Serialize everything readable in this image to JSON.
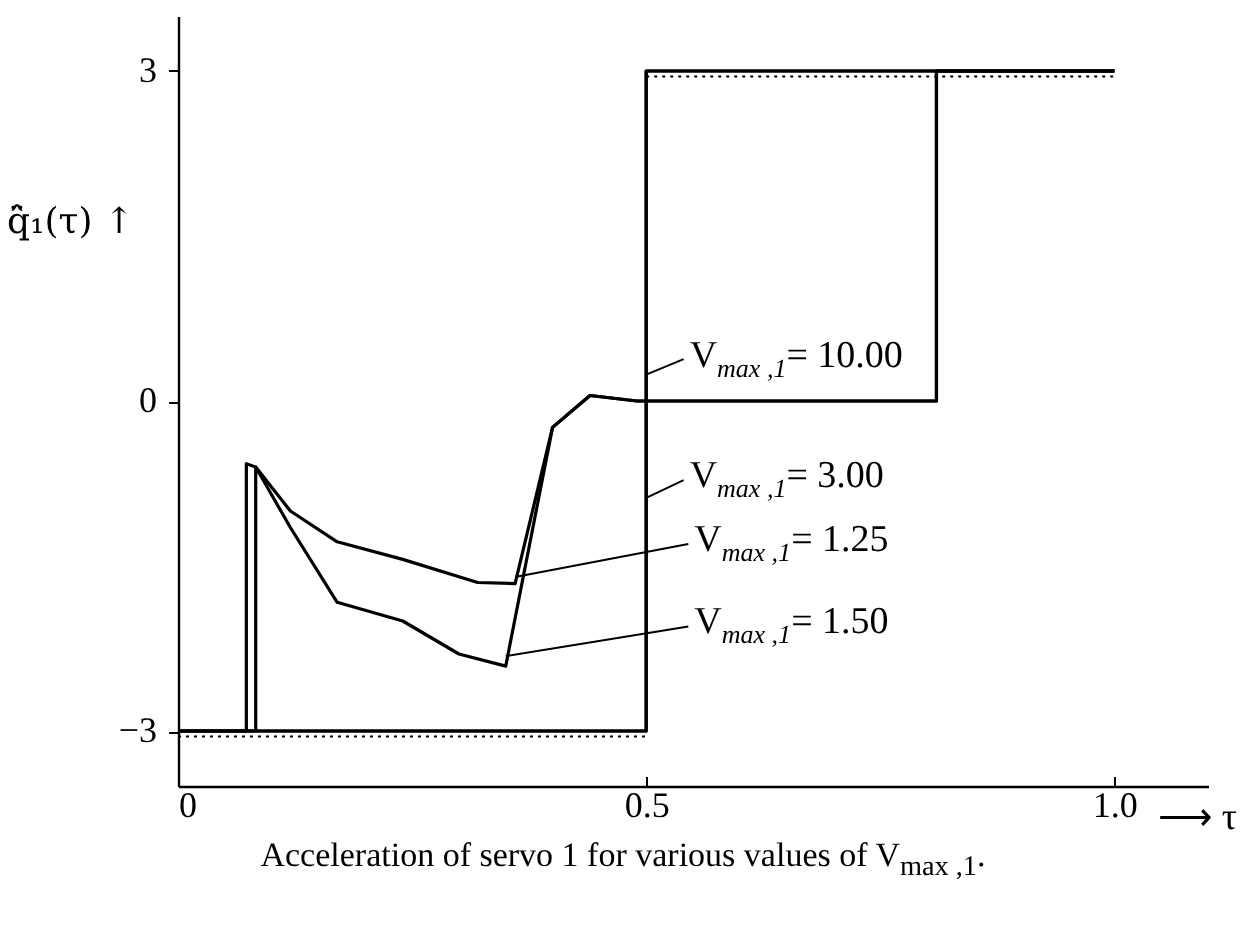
{
  "chart_data": {
    "type": "line",
    "title": "Acceleration of servo 1 for various values of V$_{max ,1}$.",
    "xlabel": "⟶ τ",
    "ylabel": "q̈̂₁(τ) ↑",
    "xlim": [
      0,
      1.1
    ],
    "xticks": [
      0,
      0.5,
      {
        "value": 1,
        "label": "1.0"
      }
    ],
    "legend": "right",
    "ylim": [
      -3.5,
      3.5
    ],
    "yticks": [
      -3,
      0,
      3
    ],
    "series": [
      {
        "name": "V$_{max ,1}$= 10.00",
        "color": "#000000",
        "x": [
          0,
          0.5,
          0.5,
          1.0
        ],
        "values": [
          -3,
          -3,
          3,
          3
        ]
      },
      {
        "name": "V$_{max ,1}$= 3.00",
        "color": "#000000",
        "x": [
          0,
          0.5,
          0.5,
          1.0
        ],
        "values": [
          -3,
          -3,
          3,
          3
        ]
      },
      {
        "name": "V$_{max ,1}$= 1.25",
        "color": "#000000",
        "x": [
          0,
          0.073,
          0.073,
          0.083,
          0.12,
          0.17,
          0.24,
          0.32,
          0.36,
          0.4,
          0.44,
          0.49,
          0.81,
          0.81,
          1.0
        ],
        "values": [
          -3,
          -3,
          -0.57,
          -0.6,
          -1.0,
          -1.28,
          -1.44,
          -1.65,
          -1.66,
          -0.24,
          0.05,
          0,
          0,
          3,
          3
        ]
      },
      {
        "name": "V$_{max ,1}$= 1.50",
        "color": "#000000",
        "x": [
          0,
          0.083,
          0.083,
          0.12,
          0.17,
          0.24,
          0.3,
          0.35,
          0.4,
          0.44,
          0.49,
          0.81,
          0.81,
          1.0
        ],
        "values": [
          -3,
          -3,
          -0.6,
          -1.15,
          -1.83,
          -2.0,
          -2.3,
          -2.41,
          -0.24,
          0.05,
          0,
          0,
          3,
          3
        ]
      },
      {
        "color": "#000000",
        "line_style": "dotted",
        "x": [
          0,
          0.5
        ],
        "values": [
          -3.05,
          -3.05
        ]
      },
      {
        "color": "#000000",
        "line_style": "dotted",
        "x": [
          0.5,
          1.0
        ],
        "values": [
          2.95,
          2.95
        ]
      }
    ]
  }
}
